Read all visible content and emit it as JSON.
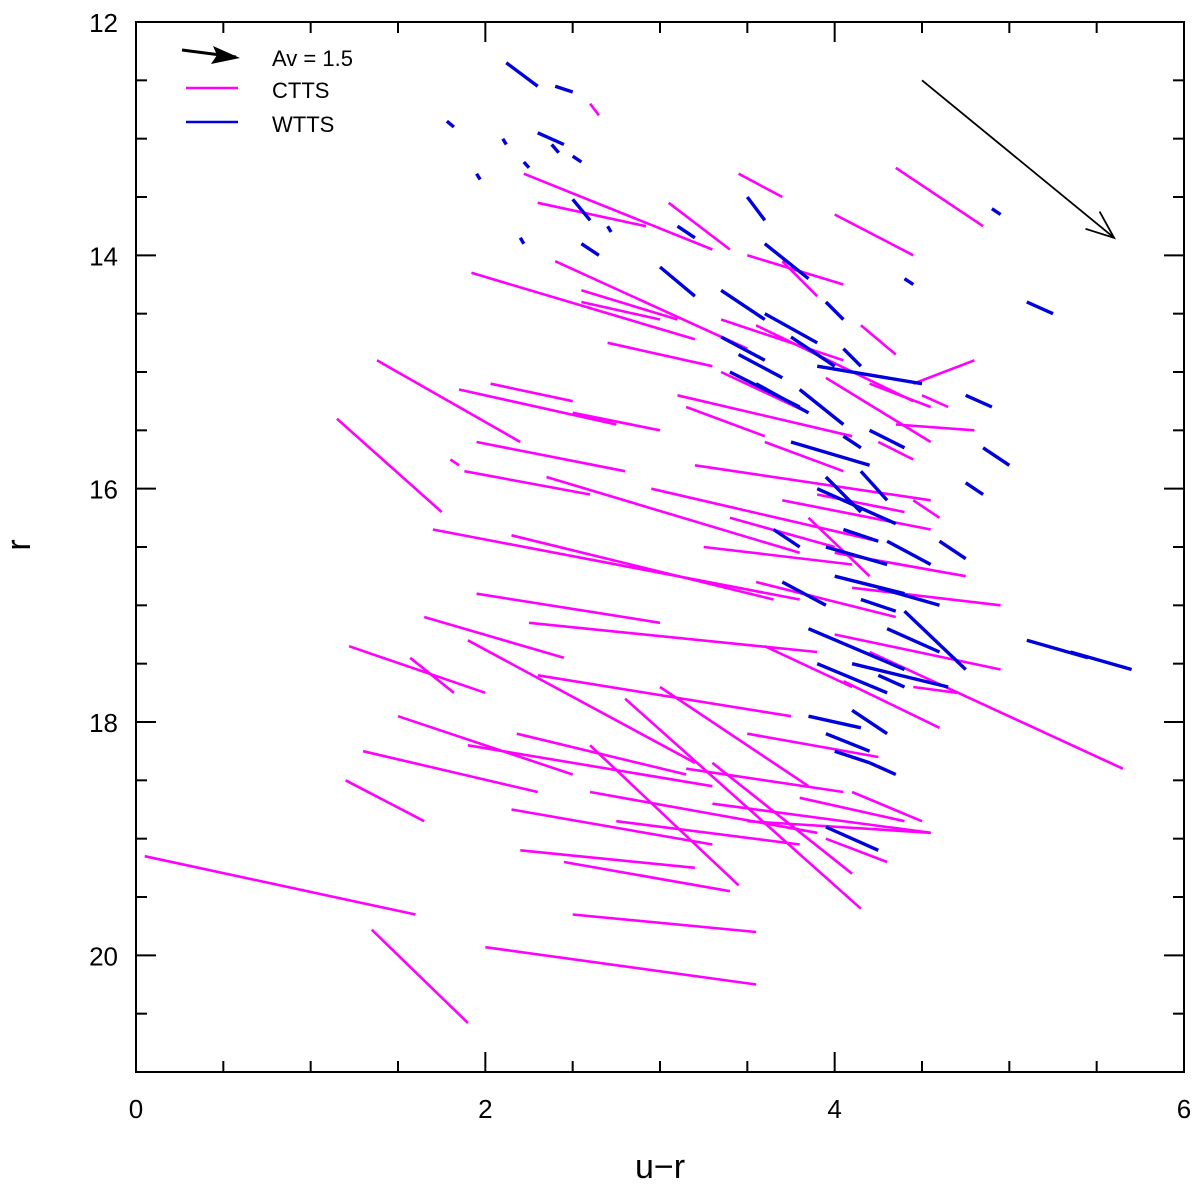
{
  "chart_data": {
    "type": "line",
    "title": "",
    "xlabel": "u−r",
    "ylabel": "r",
    "xlim": [
      0,
      6
    ],
    "ylim": [
      21,
      12
    ],
    "y_inverted": true,
    "x_major_ticks": [
      0,
      2,
      4,
      6
    ],
    "x_major_labels": [
      "0",
      "2",
      "4",
      "6"
    ],
    "x_minor_step": 0.5,
    "y_major_ticks": [
      12,
      14,
      16,
      18,
      20
    ],
    "y_major_labels": [
      "12",
      "14",
      "16",
      "18",
      "20"
    ],
    "y_minor_step": 0.5,
    "legend": {
      "placement": "top-left",
      "entries": [
        {
          "label": "Av = 1.5",
          "kind": "arrow",
          "color": "#000000"
        },
        {
          "label": "CTTS",
          "kind": "line",
          "color": "#ff00ff"
        },
        {
          "label": "WTTS",
          "kind": "line",
          "color": "#0000dd"
        }
      ]
    },
    "reddening_vector": {
      "label": "Av = 1.5",
      "x1": 4.5,
      "y1": 12.5,
      "x2": 5.6,
      "y2": 13.85,
      "color": "#000000"
    },
    "series": [
      {
        "name": "CTTS",
        "color": "#ff00ff",
        "segments": [
          [
            0.05,
            19.15,
            1.6,
            19.65
          ],
          [
            1.35,
            19.78,
            1.9,
            20.58
          ],
          [
            2.0,
            19.93,
            3.55,
            20.25
          ],
          [
            1.15,
            15.4,
            1.75,
            16.2
          ],
          [
            1.38,
            14.9,
            2.2,
            15.6
          ],
          [
            1.7,
            16.35,
            3.8,
            16.95
          ],
          [
            1.22,
            17.35,
            2.0,
            17.75
          ],
          [
            1.57,
            17.45,
            1.82,
            17.75
          ],
          [
            1.65,
            17.1,
            2.45,
            17.45
          ],
          [
            1.92,
            14.15,
            3.2,
            14.72
          ],
          [
            1.85,
            15.15,
            2.75,
            15.45
          ],
          [
            1.88,
            15.85,
            2.6,
            16.05
          ],
          [
            1.95,
            15.6,
            2.8,
            15.85
          ],
          [
            2.03,
            15.1,
            2.5,
            15.25
          ],
          [
            2.22,
            13.3,
            3.3,
            13.95
          ],
          [
            2.3,
            13.55,
            2.92,
            13.75
          ],
          [
            2.4,
            14.05,
            3.5,
            14.8
          ],
          [
            2.5,
            15.35,
            3.0,
            15.5
          ],
          [
            2.55,
            14.3,
            3.1,
            14.55
          ],
          [
            2.7,
            14.75,
            3.3,
            14.95
          ],
          [
            2.35,
            15.9,
            3.8,
            16.55
          ],
          [
            2.15,
            16.4,
            3.65,
            16.95
          ],
          [
            1.95,
            16.9,
            3.0,
            17.15
          ],
          [
            2.25,
            17.15,
            3.9,
            17.4
          ],
          [
            2.3,
            17.6,
            3.75,
            17.95
          ],
          [
            1.9,
            17.3,
            3.2,
            18.35
          ],
          [
            2.18,
            18.1,
            3.15,
            18.45
          ],
          [
            1.2,
            18.5,
            1.65,
            18.85
          ],
          [
            1.3,
            18.25,
            2.3,
            18.6
          ],
          [
            1.5,
            17.95,
            2.5,
            18.45
          ],
          [
            1.9,
            18.2,
            3.3,
            18.55
          ],
          [
            2.15,
            18.75,
            3.3,
            19.05
          ],
          [
            2.6,
            18.6,
            3.9,
            18.95
          ],
          [
            2.2,
            19.1,
            3.2,
            19.25
          ],
          [
            2.45,
            19.2,
            3.4,
            19.45
          ],
          [
            2.5,
            19.65,
            3.55,
            19.8
          ],
          [
            2.6,
            18.2,
            3.45,
            19.4
          ],
          [
            2.8,
            17.8,
            4.15,
            19.6
          ],
          [
            3.0,
            17.7,
            3.85,
            18.55
          ],
          [
            3.15,
            18.4,
            4.05,
            18.6
          ],
          [
            3.3,
            18.7,
            4.55,
            18.95
          ],
          [
            3.5,
            18.85,
            4.55,
            18.95
          ],
          [
            3.8,
            18.65,
            4.4,
            18.85
          ],
          [
            2.95,
            16.0,
            4.25,
            16.45
          ],
          [
            3.1,
            15.2,
            4.1,
            15.55
          ],
          [
            3.2,
            15.8,
            4.55,
            16.1
          ],
          [
            3.35,
            14.55,
            4.05,
            14.9
          ],
          [
            3.45,
            13.3,
            3.7,
            13.5
          ],
          [
            3.5,
            14.0,
            4.05,
            14.25
          ],
          [
            3.55,
            14.6,
            4.45,
            15.25
          ],
          [
            3.6,
            15.6,
            4.05,
            15.85
          ],
          [
            3.25,
            16.5,
            4.1,
            16.65
          ],
          [
            3.55,
            16.8,
            4.35,
            17.1
          ],
          [
            3.7,
            16.1,
            4.55,
            16.35
          ],
          [
            4.0,
            16.55,
            4.75,
            16.75
          ],
          [
            4.0,
            17.25,
            4.95,
            17.55
          ],
          [
            4.1,
            16.85,
            4.95,
            17.0
          ],
          [
            4.35,
            15.45,
            4.8,
            15.5
          ],
          [
            4.45,
            16.1,
            4.6,
            16.25
          ],
          [
            4.2,
            17.4,
            5.65,
            18.4
          ],
          [
            4.45,
            17.7,
            4.7,
            17.75
          ],
          [
            4.35,
            13.25,
            4.85,
            13.75
          ],
          [
            4.0,
            13.65,
            4.45,
            14.0
          ],
          [
            4.2,
            15.1,
            4.55,
            15.3
          ],
          [
            4.5,
            15.2,
            4.65,
            15.3
          ],
          [
            4.25,
            15.6,
            4.45,
            15.75
          ],
          [
            4.45,
            15.1,
            4.8,
            14.9
          ],
          [
            2.6,
            12.7,
            2.65,
            12.8
          ],
          [
            3.05,
            13.55,
            3.4,
            13.95
          ],
          [
            3.35,
            15.0,
            3.85,
            15.35
          ],
          [
            3.7,
            14.05,
            3.9,
            14.35
          ],
          [
            3.95,
            15.05,
            4.55,
            15.6
          ],
          [
            4.15,
            14.6,
            4.35,
            14.85
          ],
          [
            3.85,
            16.25,
            4.2,
            16.75
          ],
          [
            4.05,
            17.65,
            4.6,
            18.05
          ],
          [
            3.5,
            18.1,
            4.25,
            18.3
          ],
          [
            3.3,
            18.35,
            4.1,
            19.3
          ],
          [
            2.75,
            18.85,
            3.8,
            19.05
          ],
          [
            3.95,
            19.0,
            4.3,
            19.2
          ],
          [
            4.1,
            18.6,
            4.5,
            18.85
          ],
          [
            3.6,
            17.35,
            4.1,
            17.7
          ],
          [
            3.9,
            16.05,
            4.4,
            16.2
          ],
          [
            3.15,
            15.3,
            3.6,
            15.55
          ],
          [
            3.4,
            16.25,
            4.0,
            16.5
          ],
          [
            1.8,
            15.75,
            1.85,
            15.8
          ],
          [
            2.55,
            14.4,
            3.0,
            14.55
          ]
        ]
      },
      {
        "name": "WTTS",
        "color": "#0000dd",
        "segments": [
          [
            2.12,
            12.35,
            2.3,
            12.55
          ],
          [
            2.4,
            12.55,
            2.5,
            12.6
          ],
          [
            2.3,
            12.95,
            2.45,
            13.05
          ],
          [
            1.78,
            12.85,
            1.82,
            12.9
          ],
          [
            2.1,
            13.0,
            2.12,
            13.05
          ],
          [
            2.38,
            13.05,
            2.42,
            13.12
          ],
          [
            2.5,
            13.15,
            2.55,
            13.2
          ],
          [
            2.22,
            13.2,
            2.25,
            13.25
          ],
          [
            2.5,
            13.52,
            2.6,
            13.7
          ],
          [
            3.1,
            13.75,
            3.2,
            13.85
          ],
          [
            3.5,
            13.5,
            3.6,
            13.7
          ],
          [
            3.0,
            14.1,
            3.2,
            14.35
          ],
          [
            3.35,
            14.3,
            3.6,
            14.55
          ],
          [
            3.6,
            14.5,
            3.9,
            14.75
          ],
          [
            3.35,
            14.7,
            3.6,
            14.9
          ],
          [
            3.4,
            15.0,
            3.8,
            15.3
          ],
          [
            3.55,
            15.1,
            3.85,
            15.35
          ],
          [
            3.8,
            15.15,
            4.05,
            15.45
          ],
          [
            3.9,
            14.95,
            4.5,
            15.1
          ],
          [
            3.75,
            15.6,
            4.2,
            15.8
          ],
          [
            3.95,
            15.9,
            4.15,
            16.2
          ],
          [
            3.9,
            16.0,
            4.35,
            16.3
          ],
          [
            3.95,
            16.5,
            4.3,
            16.65
          ],
          [
            4.0,
            16.75,
            4.4,
            16.9
          ],
          [
            3.85,
            17.2,
            4.4,
            17.55
          ],
          [
            3.9,
            17.5,
            4.3,
            17.75
          ],
          [
            4.1,
            17.5,
            4.65,
            17.7
          ],
          [
            3.85,
            17.95,
            4.15,
            18.05
          ],
          [
            3.95,
            18.1,
            4.2,
            18.25
          ],
          [
            4.0,
            18.25,
            4.2,
            18.35
          ],
          [
            3.95,
            18.9,
            4.25,
            19.1
          ],
          [
            4.3,
            16.45,
            4.55,
            16.65
          ],
          [
            4.25,
            16.85,
            4.6,
            17.0
          ],
          [
            4.3,
            17.2,
            4.6,
            17.4
          ],
          [
            4.4,
            17.05,
            4.75,
            17.55
          ],
          [
            4.6,
            16.45,
            4.75,
            16.6
          ],
          [
            4.75,
            15.95,
            4.85,
            16.05
          ],
          [
            4.75,
            15.2,
            4.9,
            15.3
          ],
          [
            4.85,
            15.65,
            5.0,
            15.8
          ],
          [
            5.1,
            14.4,
            5.25,
            14.5
          ],
          [
            5.1,
            17.3,
            5.45,
            17.45
          ],
          [
            5.35,
            17.4,
            5.7,
            17.55
          ],
          [
            4.9,
            13.6,
            4.95,
            13.65
          ],
          [
            4.2,
            15.5,
            4.4,
            15.65
          ],
          [
            4.15,
            15.85,
            4.3,
            16.1
          ],
          [
            3.65,
            16.35,
            3.8,
            16.5
          ],
          [
            3.7,
            16.8,
            3.95,
            17.0
          ],
          [
            4.1,
            17.9,
            4.3,
            18.1
          ],
          [
            4.2,
            18.35,
            4.35,
            18.45
          ],
          [
            3.95,
            14.4,
            4.05,
            14.55
          ],
          [
            4.05,
            14.8,
            4.15,
            14.95
          ],
          [
            4.4,
            14.2,
            4.45,
            14.25
          ],
          [
            4.05,
            15.55,
            4.15,
            15.65
          ],
          [
            2.55,
            13.9,
            2.65,
            14.0
          ],
          [
            2.7,
            13.75,
            2.72,
            13.8
          ],
          [
            1.95,
            13.3,
            1.97,
            13.35
          ],
          [
            2.2,
            13.85,
            2.22,
            13.9
          ],
          [
            3.6,
            13.9,
            3.85,
            14.2
          ],
          [
            3.75,
            14.7,
            4.0,
            14.95
          ],
          [
            3.45,
            14.85,
            3.7,
            15.05
          ],
          [
            4.05,
            16.35,
            4.25,
            16.45
          ],
          [
            4.15,
            16.95,
            4.35,
            17.05
          ],
          [
            4.25,
            17.6,
            4.4,
            17.7
          ]
        ]
      }
    ]
  }
}
